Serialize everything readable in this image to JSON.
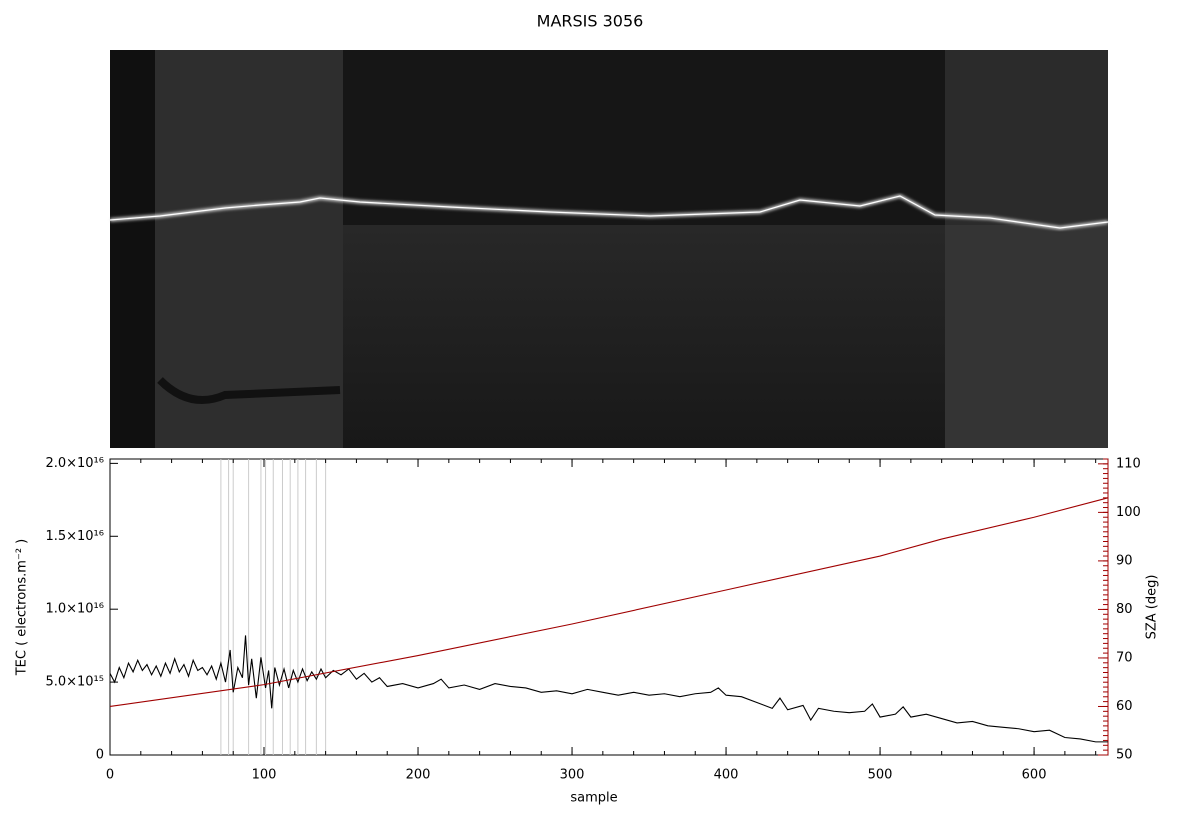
{
  "chart_data": {
    "type": "line",
    "title": "MARSIS 3056",
    "x_label": "sample",
    "y_label": "TEC ( electrons.m⁻² )",
    "y2_label": "SZA (deg)",
    "xlim": [
      0,
      648
    ],
    "xticks": [
      0,
      100,
      200,
      300,
      400,
      500,
      600
    ],
    "ylim": [
      0,
      2.03e+16
    ],
    "yticks": [
      0,
      {
        "value": 5000000000000000.0,
        "label": "5.0×10¹⁵"
      },
      {
        "value": 1e+16,
        "label": "1.0×10¹⁶"
      },
      {
        "value": 1.5e+16,
        "label": "1.5×10¹⁶"
      },
      {
        "value": 2e+16,
        "label": "2.0×10¹⁶"
      }
    ],
    "y2lim": [
      50,
      111
    ],
    "y2ticks": [
      50,
      60,
      70,
      80,
      90,
      100,
      110
    ],
    "y2_color": "#a00000",
    "vlines": [
      72,
      77,
      80,
      90,
      98,
      101,
      106,
      112,
      117,
      122,
      127,
      134,
      140
    ],
    "vline_color": "#cccccc",
    "series": [
      {
        "name": "TEC",
        "color": "#000000",
        "x": [
          0,
          3,
          6,
          9,
          12,
          15,
          18,
          21,
          24,
          27,
          30,
          33,
          36,
          39,
          42,
          45,
          48,
          51,
          54,
          57,
          60,
          63,
          66,
          69,
          72,
          75,
          78,
          80,
          83,
          86,
          88,
          90,
          92,
          95,
          98,
          101,
          103,
          105,
          107,
          110,
          113,
          116,
          119,
          122,
          125,
          128,
          131,
          134,
          137,
          140,
          145,
          150,
          155,
          160,
          165,
          170,
          175,
          180,
          190,
          200,
          210,
          215,
          220,
          230,
          240,
          250,
          260,
          270,
          280,
          290,
          300,
          310,
          320,
          330,
          340,
          350,
          360,
          370,
          380,
          390,
          395,
          400,
          410,
          420,
          430,
          435,
          440,
          450,
          455,
          460,
          470,
          480,
          490,
          495,
          500,
          510,
          515,
          520,
          530,
          540,
          550,
          560,
          570,
          580,
          590,
          600,
          610,
          620,
          630,
          640,
          648
        ],
        "values": [
          5600000000000000.0,
          5000000000000000.0,
          6000000000000000.0,
          5300000000000000.0,
          6300000000000000.0,
          5700000000000000.0,
          6500000000000000.0,
          5800000000000000.0,
          6200000000000000.0,
          5500000000000000.0,
          6100000000000000.0,
          5400000000000000.0,
          6300000000000000.0,
          5600000000000000.0,
          6600000000000000.0,
          5700000000000000.0,
          6200000000000000.0,
          5400000000000000.0,
          6500000000000000.0,
          5800000000000000.0,
          6000000000000000.0,
          5500000000000000.0,
          6100000000000000.0,
          5200000000000000.0,
          6300000000000000.0,
          5000000000000000.0,
          7200000000000000.0,
          4300000000000000.0,
          6000000000000000.0,
          5300000000000000.0,
          8200000000000000.0,
          4800000000000000.0,
          6600000000000000.0,
          3900000000000000.0,
          6700000000000000.0,
          4600000000000000.0,
          5800000000000000.0,
          3200000000000000.0,
          6000000000000000.0,
          4800000000000000.0,
          5900000000000000.0,
          4600000000000000.0,
          5800000000000000.0,
          5000000000000000.0,
          5900000000000000.0,
          5100000000000000.0,
          5700000000000000.0,
          5200000000000000.0,
          5900000000000000.0,
          5300000000000000.0,
          5800000000000000.0,
          5500000000000000.0,
          5900000000000000.0,
          5200000000000000.0,
          5600000000000000.0,
          5000000000000000.0,
          5300000000000000.0,
          4700000000000000.0,
          4900000000000000.0,
          4600000000000000.0,
          4900000000000000.0,
          5200000000000000.0,
          4600000000000000.0,
          4800000000000000.0,
          4500000000000000.0,
          4900000000000000.0,
          4700000000000000.0,
          4600000000000000.0,
          4300000000000000.0,
          4400000000000000.0,
          4200000000000000.0,
          4500000000000000.0,
          4300000000000000.0,
          4100000000000000.0,
          4300000000000000.0,
          4100000000000000.0,
          4200000000000000.0,
          4000000000000000.0,
          4200000000000000.0,
          4300000000000000.0,
          4600000000000000.0,
          4100000000000000.0,
          4000000000000000.0,
          3600000000000000.0,
          3200000000000000.0,
          3900000000000000.0,
          3100000000000000.0,
          3400000000000000.0,
          2400000000000000.0,
          3200000000000000.0,
          3000000000000000.0,
          2900000000000000.0,
          3000000000000000.0,
          3500000000000000.0,
          2600000000000000.0,
          2800000000000000.0,
          3300000000000000.0,
          2600000000000000.0,
          2800000000000000.0,
          2500000000000000.0,
          2200000000000000.0,
          2300000000000000.0,
          2000000000000000.0,
          1900000000000000.0,
          1800000000000000.0,
          1600000000000000.0,
          1700000000000000.0,
          1200000000000000.0,
          1100000000000000.0,
          900000000000000.0,
          900000000000000.0
        ]
      },
      {
        "name": "SZA",
        "color": "#a00000",
        "axis": "y2",
        "x": [
          0,
          100,
          200,
          300,
          400,
          500,
          540,
          600,
          648
        ],
        "values": [
          60,
          64.5,
          70.5,
          77,
          84,
          91,
          94.5,
          99,
          103
        ]
      }
    ]
  }
}
